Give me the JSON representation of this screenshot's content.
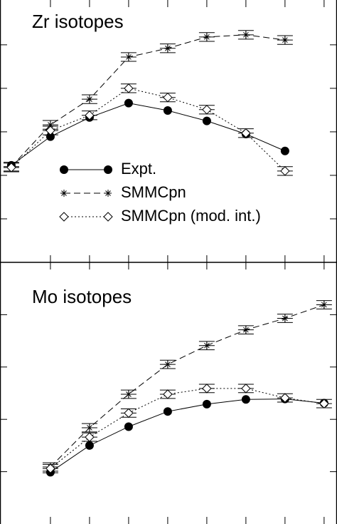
{
  "chart_data": [
    {
      "type": "line",
      "title": "Zr isotopes",
      "x": [
        0,
        1,
        2,
        3,
        4,
        5,
        6,
        7
      ],
      "xlim": [
        -0.29,
        8.33
      ],
      "xticks": [
        1,
        2,
        3,
        4,
        5,
        6,
        7,
        8
      ],
      "ylim": [
        0,
        6.03
      ],
      "yticks": [
        1,
        2,
        3,
        4,
        5
      ],
      "legend": "lower-left",
      "series": [
        {
          "name": "Expt.",
          "color": "#000000",
          "marker": "circle",
          "dash": "solid",
          "values": [
            2.23,
            2.89,
            3.33,
            3.66,
            3.49,
            3.25,
            2.95,
            2.56
          ]
        },
        {
          "name": "SMMCpn",
          "color": "#000000",
          "marker": "asterisk",
          "dash": "dashed",
          "values": [
            2.2,
            3.16,
            3.75,
            4.72,
            4.92,
            5.18,
            5.23,
            5.11
          ],
          "errors": [
            0.1,
            0.1,
            0.1,
            0.1,
            0.1,
            0.1,
            0.1,
            0.1
          ]
        },
        {
          "name": "SMMCpn (mod. int.)",
          "color": "#000000",
          "marker": "diamond",
          "dash": "dotted",
          "values": [
            2.18,
            3.03,
            3.38,
            4.0,
            3.79,
            3.51,
            2.97,
            2.1
          ],
          "errors": [
            0.1,
            0.1,
            0.1,
            0.1,
            0.1,
            0.1,
            0.1,
            0.1
          ]
        }
      ]
    },
    {
      "type": "line",
      "title": "Mo isotopes",
      "x": [
        1,
        2,
        3,
        4,
        5,
        6,
        7,
        8
      ],
      "xlim": [
        -0.29,
        8.33
      ],
      "xticks": [
        1,
        2,
        3,
        4,
        5,
        6,
        7,
        8
      ],
      "ylim": [
        0,
        5.0
      ],
      "yticks": [
        1,
        2,
        3,
        4
      ],
      "series": [
        {
          "color": "#000000",
          "marker": "circle",
          "dash": "solid",
          "values": [
            0.99,
            1.5,
            1.86,
            2.15,
            2.29,
            2.38,
            2.39,
            2.31
          ]
        },
        {
          "color": "#000000",
          "marker": "asterisk",
          "dash": "dashed",
          "values": [
            1.09,
            1.84,
            2.48,
            3.05,
            3.41,
            3.71,
            3.93,
            4.19
          ],
          "errors": [
            0.08,
            0.08,
            0.08,
            0.08,
            0.08,
            0.08,
            0.08,
            0.08
          ]
        },
        {
          "color": "#000000",
          "marker": "diamond",
          "dash": "dotted",
          "values": [
            1.06,
            1.66,
            2.12,
            2.48,
            2.59,
            2.59,
            2.41,
            2.3
          ],
          "errors": [
            0.08,
            0.08,
            0.08,
            0.08,
            0.08,
            0.08,
            0.08,
            0.08
          ]
        }
      ]
    }
  ]
}
